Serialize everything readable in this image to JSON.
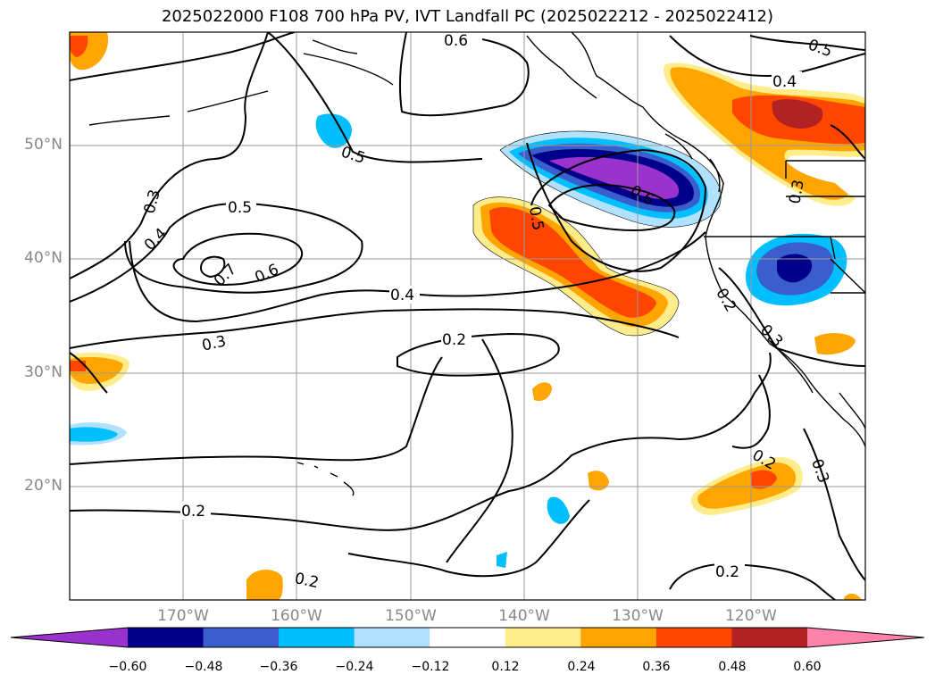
{
  "title": "2025022000 F108 700 hPa PV, IVT Landfall PC (2025022212 - 2025022412)",
  "latitude_labels": [
    "50°N",
    "40°N",
    "30°N",
    "20°N"
  ],
  "longitude_labels": [
    "170°W",
    "160°W",
    "150°W",
    "140°W",
    "130°W",
    "120°W"
  ],
  "contour_labels": [
    {
      "id": "c1",
      "text": "0.6"
    },
    {
      "id": "c2",
      "text": "0.5"
    },
    {
      "id": "c3",
      "text": "0.4"
    },
    {
      "id": "c4",
      "text": "0.5"
    },
    {
      "id": "c5",
      "text": "0.3"
    },
    {
      "id": "c6",
      "text": "0.4"
    },
    {
      "id": "c7",
      "text": "0.5"
    },
    {
      "id": "c8",
      "text": "0.7"
    },
    {
      "id": "c9",
      "text": "0.6"
    },
    {
      "id": "c10",
      "text": "0.4"
    },
    {
      "id": "c11",
      "text": "0.3"
    },
    {
      "id": "c12",
      "text": "0.2"
    },
    {
      "id": "c13",
      "text": "0.5"
    },
    {
      "id": "c14",
      "text": "0.6"
    },
    {
      "id": "c15",
      "text": "0.3"
    },
    {
      "id": "c16",
      "text": "0.2"
    },
    {
      "id": "c17",
      "text": "0.3"
    },
    {
      "id": "c18",
      "text": "0.2"
    },
    {
      "id": "c19",
      "text": "0.3"
    },
    {
      "id": "c20",
      "text": "0.2"
    },
    {
      "id": "c21",
      "text": "0.2"
    }
  ],
  "colorbar": {
    "ticks": [
      "−0.60",
      "−0.48",
      "−0.36",
      "−0.24",
      "−0.12",
      "0.12",
      "0.24",
      "0.36",
      "0.48",
      "0.60"
    ],
    "colors": [
      "#9b32cd",
      "#00008b",
      "#3a5fcd",
      "#00bfff",
      "#b0e2ff",
      "#ffffff",
      "#ffec8b",
      "#ffa500",
      "#ff4500",
      "#b22222",
      "#ff82ab"
    ]
  }
}
